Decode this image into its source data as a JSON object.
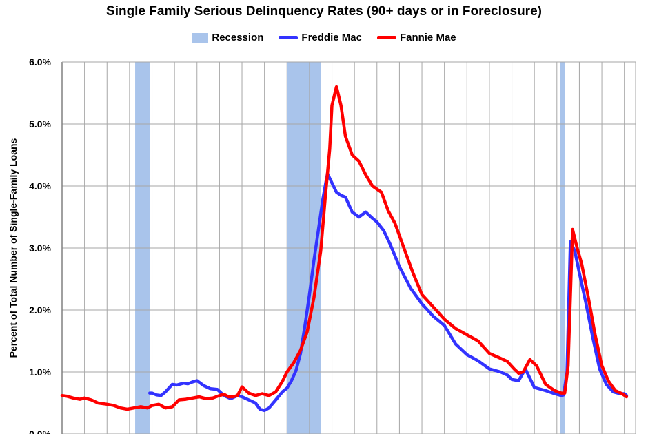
{
  "colors": {
    "recession": "#a9c4eb",
    "freddie": "#3333ff",
    "fannie": "#ff0000",
    "grid": "#a6a6a6",
    "axis": "#808080"
  },
  "chart_data": {
    "type": "line",
    "title": "Single Family Serious Delinquency Rates (90+ days or in Foreclosure)",
    "ylabel": "Percent of Total Number of Single-Family Loans",
    "xlabel": "",
    "xlim": [
      1998.0,
      2023.5
    ],
    "ylim": [
      0.0,
      6.0
    ],
    "yticks": [
      0.0,
      1.0,
      2.0,
      3.0,
      4.0,
      5.0,
      6.0
    ],
    "ytick_labels": [
      "0.0%",
      "1.0%",
      "2.0%",
      "3.0%",
      "4.0%",
      "5.0%",
      "6.0%"
    ],
    "grid": true,
    "legend_position": "top-center",
    "recessions": [
      {
        "name": "Recession",
        "start": 2001.25,
        "end": 2001.9
      },
      {
        "name": "Recession",
        "start": 2008.0,
        "end": 2009.5
      },
      {
        "name": "Recession",
        "start": 2020.15,
        "end": 2020.35
      }
    ],
    "series": [
      {
        "name": "Freddie Mac",
        "x": [
          2001.9,
          2002.0,
          2002.2,
          2002.4,
          2002.6,
          2002.9,
          2003.1,
          2003.4,
          2003.6,
          2003.8,
          2004.0,
          2004.3,
          2004.6,
          2004.9,
          2005.2,
          2005.5,
          2005.8,
          2006.0,
          2006.3,
          2006.6,
          2006.8,
          2007.0,
          2007.2,
          2007.5,
          2007.8,
          2008.0,
          2008.2,
          2008.4,
          2008.6,
          2008.8,
          2009.0,
          2009.2,
          2009.4,
          2009.6,
          2009.8,
          2010.0,
          2010.2,
          2010.4,
          2010.6,
          2010.9,
          2011.2,
          2011.5,
          2011.8,
          2012.0,
          2012.3,
          2012.6,
          2013.0,
          2013.5,
          2014.0,
          2014.5,
          2015.0,
          2015.5,
          2016.0,
          2016.5,
          2017.0,
          2017.5,
          2017.8,
          2018.0,
          2018.3,
          2018.6,
          2019.0,
          2019.5,
          2019.9,
          2020.2,
          2020.3,
          2020.45,
          2020.6,
          2020.8,
          2021.0,
          2021.3,
          2021.6,
          2021.9,
          2022.2,
          2022.5,
          2022.8,
          2023.0,
          2023.1
        ],
        "values": [
          0.66,
          0.66,
          0.63,
          0.62,
          0.68,
          0.8,
          0.79,
          0.82,
          0.81,
          0.84,
          0.86,
          0.78,
          0.73,
          0.72,
          0.62,
          0.57,
          0.62,
          0.6,
          0.55,
          0.5,
          0.4,
          0.38,
          0.42,
          0.55,
          0.68,
          0.74,
          0.86,
          1.02,
          1.3,
          1.75,
          2.25,
          2.8,
          3.3,
          3.8,
          4.2,
          4.05,
          3.9,
          3.85,
          3.82,
          3.58,
          3.5,
          3.58,
          3.48,
          3.42,
          3.28,
          3.05,
          2.7,
          2.35,
          2.1,
          1.9,
          1.75,
          1.45,
          1.28,
          1.18,
          1.05,
          1.0,
          0.95,
          0.88,
          0.86,
          1.05,
          0.75,
          0.7,
          0.65,
          0.62,
          0.63,
          1.0,
          3.1,
          2.95,
          2.6,
          2.1,
          1.55,
          1.05,
          0.8,
          0.68,
          0.65,
          0.65,
          0.62
        ]
      },
      {
        "name": "Fannie Mae",
        "x": [
          1998.0,
          1998.2,
          1998.5,
          1998.8,
          1999.0,
          1999.3,
          1999.6,
          2000.0,
          2000.3,
          2000.6,
          2000.9,
          2001.2,
          2001.5,
          2001.8,
          2002.0,
          2002.3,
          2002.6,
          2002.9,
          2003.2,
          2003.5,
          2003.8,
          2004.1,
          2004.4,
          2004.7,
          2005.0,
          2005.2,
          2005.4,
          2005.6,
          2005.8,
          2006.0,
          2006.3,
          2006.6,
          2006.9,
          2007.2,
          2007.5,
          2007.8,
          2008.0,
          2008.3,
          2008.6,
          2008.9,
          2009.2,
          2009.5,
          2009.7,
          2009.9,
          2010.0,
          2010.2,
          2010.4,
          2010.6,
          2010.9,
          2011.2,
          2011.5,
          2011.8,
          2012.2,
          2012.5,
          2012.8,
          2013.2,
          2013.6,
          2014.0,
          2014.5,
          2015.0,
          2015.5,
          2016.0,
          2016.5,
          2017.0,
          2017.5,
          2017.8,
          2018.1,
          2018.3,
          2018.5,
          2018.8,
          2019.1,
          2019.5,
          2019.9,
          2020.2,
          2020.35,
          2020.5,
          2020.7,
          2020.9,
          2021.1,
          2021.4,
          2021.7,
          2022.0,
          2022.3,
          2022.6,
          2022.9,
          2023.1
        ],
        "values": [
          0.62,
          0.61,
          0.58,
          0.56,
          0.58,
          0.55,
          0.5,
          0.48,
          0.46,
          0.42,
          0.4,
          0.42,
          0.44,
          0.42,
          0.46,
          0.48,
          0.42,
          0.44,
          0.55,
          0.56,
          0.58,
          0.6,
          0.57,
          0.58,
          0.62,
          0.64,
          0.6,
          0.6,
          0.62,
          0.76,
          0.66,
          0.62,
          0.65,
          0.62,
          0.68,
          0.85,
          1.0,
          1.15,
          1.35,
          1.65,
          2.2,
          2.95,
          3.8,
          4.6,
          5.3,
          5.6,
          5.3,
          4.8,
          4.5,
          4.4,
          4.18,
          4.0,
          3.9,
          3.6,
          3.4,
          3.0,
          2.6,
          2.25,
          2.05,
          1.85,
          1.7,
          1.6,
          1.5,
          1.3,
          1.22,
          1.17,
          1.05,
          0.98,
          1.0,
          1.2,
          1.1,
          0.8,
          0.7,
          0.66,
          0.66,
          1.1,
          3.3,
          3.0,
          2.75,
          2.2,
          1.6,
          1.1,
          0.85,
          0.7,
          0.65,
          0.6
        ]
      }
    ]
  }
}
